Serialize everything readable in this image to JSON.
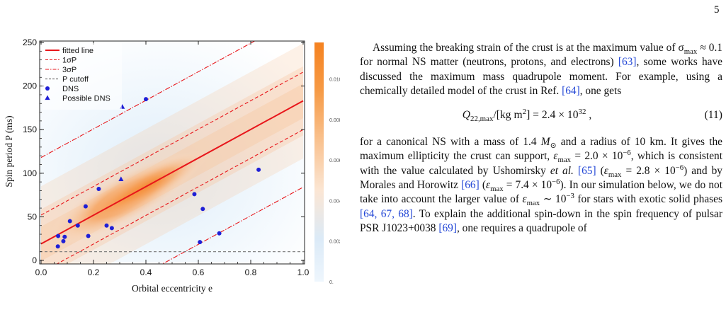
{
  "page_number": "5",
  "figure": {
    "chart_data": {
      "type": "scatter",
      "xlabel": "Orbital eccentricity e",
      "ylabel": "Spin period P (ms)",
      "xlim": [
        0.0,
        1.0
      ],
      "ylim": [
        0,
        250
      ],
      "x_ticks": [
        "0.0",
        "0.2",
        "0.4",
        "0.6",
        "0.8",
        "1.0"
      ],
      "y_ticks": [
        "0",
        "50",
        "100",
        "150",
        "200",
        "250"
      ],
      "colorbar_ticks": [
        "0.010",
        "0.008",
        "0.006",
        "0.004",
        "0.002",
        "0."
      ],
      "colorbar_values": [
        0.01,
        0.008,
        0.006,
        0.004,
        0.002,
        0.0
      ],
      "colorbar_max": 0.0118,
      "legend_position": "top-left",
      "legend": [
        "fitted line",
        "1σP",
        "3σP",
        "P cutoff",
        "DNS",
        "Possible DNS"
      ],
      "fitted_line": {
        "slope": 164,
        "intercept": 19
      },
      "sigma_offset": 33,
      "p_cutoff": 10,
      "series": [
        {
          "name": "DNS",
          "marker": "circle",
          "color": "#1f1fd6",
          "points": [
            [
              0.064,
              16
            ],
            [
              0.065,
              28
            ],
            [
              0.085,
              22
            ],
            [
              0.09,
              27
            ],
            [
              0.11,
              45
            ],
            [
              0.14,
              40
            ],
            [
              0.17,
              62
            ],
            [
              0.18,
              28
            ],
            [
              0.22,
              82
            ],
            [
              0.25,
              40
            ],
            [
              0.27,
              37
            ],
            [
              0.4,
              185
            ],
            [
              0.585,
              76
            ],
            [
              0.606,
              21
            ],
            [
              0.617,
              59
            ],
            [
              0.68,
              31
            ],
            [
              0.83,
              104
            ]
          ]
        },
        {
          "name": "Possible DNS",
          "marker": "triangle",
          "color": "#1f1fd6",
          "points": [
            [
              0.31,
              176
            ],
            [
              0.305,
              93
            ]
          ]
        }
      ],
      "colors": {
        "fitted": "#e8161b",
        "sigma": "#e8161b",
        "cutoff": "#777777",
        "axis": "#222222"
      }
    },
    "caption_fragment": "nt …… the distribution of the simulated …"
  },
  "text": {
    "p1": "Assuming the breaking strain of the crust is at the maximum value of σmax ≈ 0.1 for normal NS matter (neutrons, protons, and electrons) [63], some works have discussed the maximum mass quadrupole moment. For example, using a chemically detailed model of the crust in Ref. [64], one gets",
    "p1_parts": [
      "Assuming the breaking strain of the crust is at the maximum value of σ",
      "max",
      " ≈ 0.1 for normal NS matter (neutrons, protons, and electrons) ",
      "[63]",
      ", some works have discussed the maximum mass quadrupole moment. For example, using a chemically detailed model of the crust in Ref. ",
      "[64]",
      ", one gets"
    ],
    "eq11": {
      "lhs": "Q",
      "lhs_sub": "22,max",
      "unit": "/[kg m",
      "unit_sup": "2",
      "rhs": "] = 2.4 × 10",
      "rhs_sup": "32",
      "tail": " ,",
      "number": "(11)"
    },
    "p2_parts": [
      "for a canonical NS with a mass of 1.4 ",
      "M",
      "⊙",
      " and a radius of 10 km. It gives the maximum ellipticity the crust can support, ",
      "ε",
      "max",
      " = 2.0 × 10",
      "−6",
      ", which is consistent with the value calculated by Ushomirsky ",
      "et al.",
      " ",
      "[65]",
      " (",
      "ε",
      "max",
      " = 2.8 × 10",
      "−6",
      ") and by Morales and Horowitz ",
      "[66]",
      " (",
      "ε",
      "max",
      " = 7.4 × 10",
      "−6",
      "). In our simulation below, we do not take into account the larger value of ",
      "ε",
      "max",
      " ∼ 10",
      "−3",
      " for stars with exotic solid phases ",
      "[64, 67, 68]",
      ". To explain the additional spin-down in the spin frequency of pulsar PSR J1023+0038 ",
      "[69]",
      ", one requires a quadrupole of"
    ]
  }
}
